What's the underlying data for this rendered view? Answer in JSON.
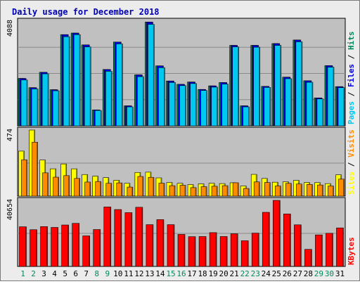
{
  "chart_data": {
    "type": "bar",
    "title": "Daily usage for December 2018",
    "categories": [
      "1",
      "2",
      "3",
      "4",
      "5",
      "6",
      "7",
      "8",
      "9",
      "10",
      "11",
      "12",
      "13",
      "14",
      "15",
      "16",
      "17",
      "18",
      "19",
      "20",
      "21",
      "22",
      "23",
      "24",
      "25",
      "26",
      "27",
      "28",
      "29",
      "30",
      "31"
    ],
    "weekend_days": [
      "1",
      "2",
      "8",
      "9",
      "15",
      "16",
      "22",
      "23",
      "29",
      "30"
    ],
    "panels": [
      {
        "id": "hits",
        "ymax": 4088,
        "ymax_label": "4088",
        "side_label_parts": [
          "Pages",
          " / ",
          "Files",
          " / ",
          "Hits"
        ],
        "side_label_colors": [
          "#00c8f0",
          "#000000",
          "#0000e6",
          "#000000",
          "#008a5a"
        ],
        "series": [
          {
            "name": "Hits",
            "color": "#008a5a",
            "values": [
              1850,
              1490,
              2090,
              1410,
              3560,
              3620,
              3160,
              620,
              2200,
              3270,
              780,
              1990,
              4050,
              2340,
              1750,
              1620,
              1710,
              1420,
              1560,
              1690,
              3140,
              780,
              3140,
              1540,
              3210,
              1900,
              3350,
              1760,
              1090,
              2350,
              1530
            ]
          },
          {
            "name": "Files",
            "color": "#0000e6",
            "values": [
              1850,
              1490,
              2090,
              1410,
              3560,
              3620,
              3160,
              620,
              2200,
              3270,
              780,
              1990,
              4050,
              2340,
              1750,
              1620,
              1710,
              1420,
              1560,
              1690,
              3140,
              780,
              3140,
              1540,
              3210,
              1900,
              3350,
              1760,
              1090,
              2350,
              1530
            ]
          },
          {
            "name": "Pages",
            "color": "#00c8f0",
            "values": [
              1790,
              1440,
              2030,
              1370,
              3480,
              3560,
              3080,
              600,
              2130,
              3200,
              740,
              1920,
              3960,
              2270,
              1690,
              1570,
              1650,
              1380,
              1510,
              1630,
              3080,
              740,
              3070,
              1500,
              3140,
              1840,
              3280,
              1700,
              1050,
              2290,
              1490
            ]
          }
        ]
      },
      {
        "id": "visits",
        "ymax": 474,
        "ymax_label": "474",
        "side_label_parts": [
          "Sites",
          " / ",
          "Visits"
        ],
        "side_label_colors": [
          "#ffff00",
          "#000000",
          "#ff8c00"
        ],
        "series": [
          {
            "name": "Visits",
            "color": "#ffff00",
            "values": [
              323,
              474,
              259,
              196,
              231,
              196,
              155,
              143,
              133,
              114,
              92,
              170,
              172,
              131,
              98,
              92,
              83,
              88,
              92,
              90,
              96,
              73,
              156,
              127,
              100,
              103,
              113,
              98,
              97,
              90,
              153
            ]
          },
          {
            "name": "Sites",
            "color": "#ff8c00",
            "values": [
              261,
              387,
              167,
              136,
              147,
              127,
              101,
              105,
              92,
              95,
              65,
              141,
              135,
              93,
              75,
              78,
              61,
              68,
              71,
              75,
              96,
              55,
              102,
              98,
              73,
              92,
              87,
              84,
              80,
              73,
              122
            ]
          }
        ]
      },
      {
        "id": "kbytes",
        "ymax": 40654,
        "ymax_label": "40654",
        "side_label_parts": [
          "KBytes"
        ],
        "side_label_colors": [
          "#ff0000"
        ],
        "series": [
          {
            "name": "KBytes",
            "color": "#ff0000",
            "values": [
              24400,
              22600,
              24500,
              24000,
              25500,
              26500,
              18800,
              22700,
              36600,
              35000,
              33100,
              36400,
              25700,
              28800,
              25700,
              19700,
              18300,
              18400,
              20800,
              18400,
              20100,
              15800,
              20500,
              33300,
              40654,
              32300,
              25600,
              10500,
              19400,
              20400,
              23700
            ]
          }
        ]
      }
    ]
  }
}
